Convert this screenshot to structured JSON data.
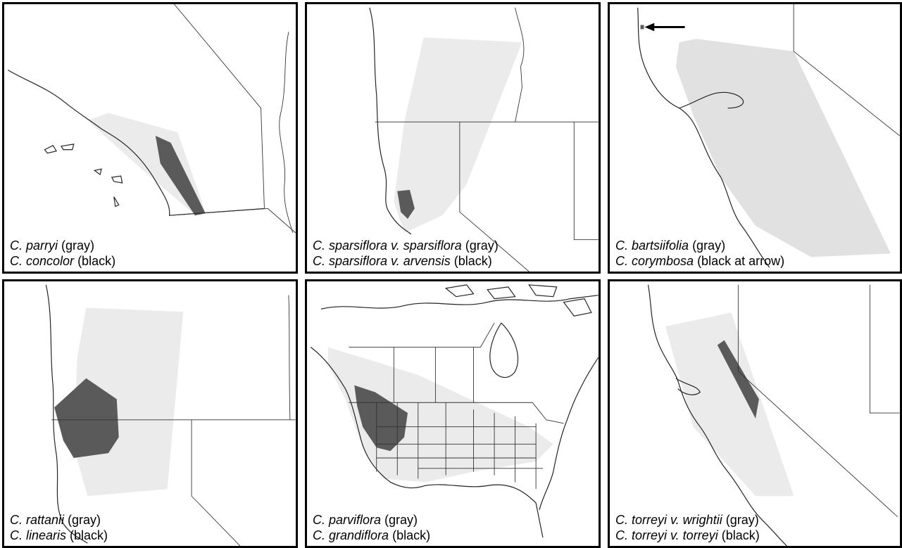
{
  "panels": [
    {
      "gray_species": "C. parryi",
      "gray_label": "(gray)",
      "black_species": "C. concolor",
      "black_label": "(black)"
    },
    {
      "gray_species": "C. sparsiflora v. sparsiflora",
      "gray_label": "(gray)",
      "black_species": "C. sparsiflora v. arvensis",
      "black_label": "(black)"
    },
    {
      "gray_species": "C. bartsiifolia",
      "gray_label": "(gray)",
      "black_species": "C. corymbosa",
      "black_label": "(black at arrow)"
    },
    {
      "gray_species": "C. rattanii",
      "gray_label": "(gray)",
      "black_species": "C. linearis",
      "black_label": "(black)"
    },
    {
      "gray_species": "C. parviflora",
      "gray_label": "(gray)",
      "black_species": "C. grandiflora",
      "black_label": "(black)"
    },
    {
      "gray_species": "C. torreyi v. wrightii",
      "gray_label": "(gray)",
      "black_species": "C. torreyi v. torreyi",
      "black_label": "(black)"
    }
  ],
  "colors": {
    "gray_range": "#dcdcdc",
    "black_range": "#5a5a5a",
    "border": "#000000"
  }
}
